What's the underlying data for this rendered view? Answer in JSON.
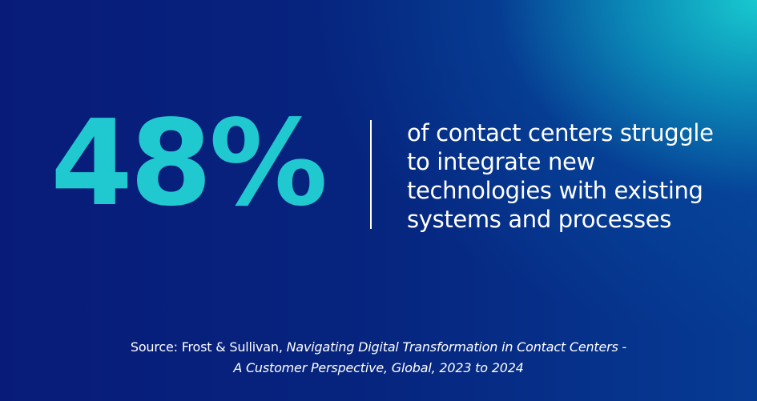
{
  "stat": {
    "value": "48%"
  },
  "description": {
    "lines": [
      "of contact centers struggle",
      "to integrate new",
      "technologies with existing",
      "systems and processes"
    ]
  },
  "source": {
    "prefix": "Source: Frost & Sullivan, ",
    "title_line1": "Navigating Digital Transformation in Contact Centers -",
    "title_line2": "A Customer Perspective, Global, 2023 to 2024"
  },
  "colors": {
    "accent": "#20c8cf",
    "background_dark": "#081b79",
    "background_light": "#18c9cf",
    "text": "#ffffff"
  }
}
